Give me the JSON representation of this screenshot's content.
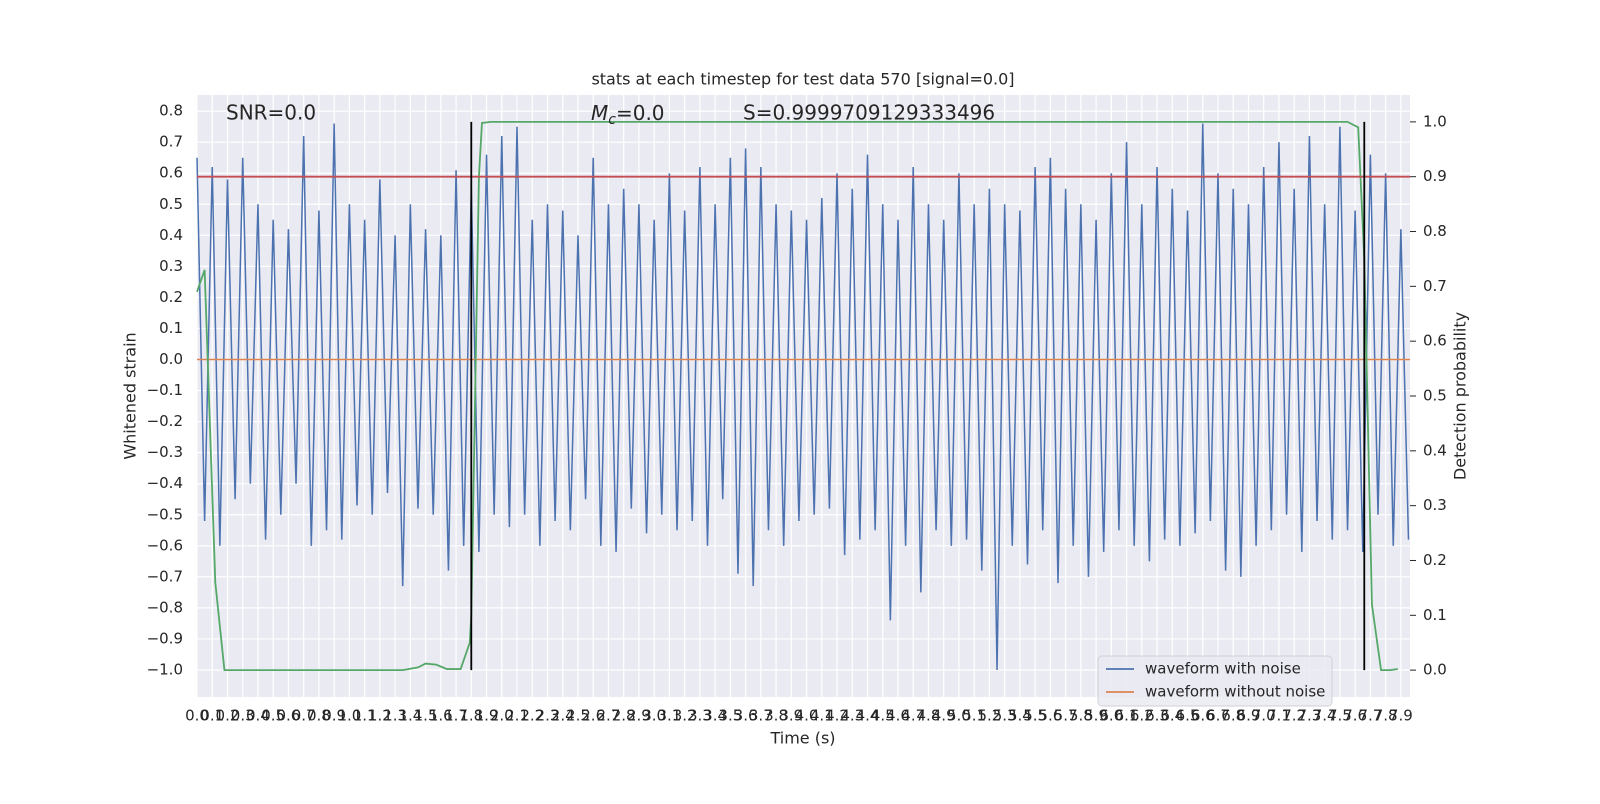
{
  "chart_data": {
    "type": "line",
    "title": "stats at each timestep for test data 570 [signal=0.0]",
    "xlabel": "Time (s)",
    "ylabel": "Whitened strain",
    "y2label": "Detection probability",
    "annotations": {
      "snr": "SNR=0.0",
      "mc": {
        "symbol": "M",
        "subscript": "c",
        "text": "=0.0"
      },
      "score": "S=0.9999709129333496"
    },
    "xlim": [
      0,
      7.96
    ],
    "ylim": [
      -1.087,
      0.852
    ],
    "y2lim": [
      -0.049,
      1.049
    ],
    "grid": true,
    "legend": "lower right",
    "xticks": [
      {
        "value": 0,
        "label": "0.0"
      },
      0.1,
      0.2,
      0.3,
      0.4,
      0.5,
      0.6,
      0.7,
      0.8,
      0.9,
      {
        "value": 1,
        "label": "1.0"
      },
      1.1,
      1.2,
      1.3,
      1.4,
      1.5,
      1.6,
      1.7,
      1.8,
      1.9,
      {
        "value": 2,
        "label": "2.0"
      },
      2.1,
      2.2,
      2.3,
      2.4,
      2.5,
      2.6,
      2.7,
      2.8,
      2.9,
      {
        "value": 3,
        "label": "3.0"
      },
      3.1,
      3.2,
      3.3,
      3.4,
      3.5,
      3.6,
      3.7,
      3.8,
      3.9,
      {
        "value": 4,
        "label": "4.0"
      },
      4.1,
      4.2,
      4.3,
      4.4,
      4.5,
      4.6,
      4.7,
      4.8,
      4.9,
      {
        "value": 5,
        "label": "5.0"
      },
      5.1,
      5.2,
      5.3,
      5.4,
      5.5,
      5.6,
      5.7,
      5.8,
      5.9,
      {
        "value": 6,
        "label": "6.0"
      },
      6.1,
      6.2,
      6.3,
      6.4,
      6.5,
      6.6,
      6.7,
      6.8,
      6.9,
      {
        "value": 7,
        "label": "7.0"
      },
      7.1,
      7.2,
      7.3,
      7.4,
      7.5,
      7.6,
      7.7,
      7.8,
      7.9
    ],
    "yticks": [
      {
        "value": -1,
        "label": "−1.0"
      },
      {
        "value": -0.9,
        "label": "−0.9"
      },
      {
        "value": -0.8,
        "label": "−0.8"
      },
      {
        "value": -0.7,
        "label": "−0.7"
      },
      {
        "value": -0.6,
        "label": "−0.6"
      },
      {
        "value": -0.5,
        "label": "−0.5"
      },
      {
        "value": -0.4,
        "label": "−0.4"
      },
      {
        "value": -0.3,
        "label": "−0.3"
      },
      {
        "value": -0.2,
        "label": "−0.2"
      },
      {
        "value": -0.1,
        "label": "−0.1"
      },
      {
        "value": 0,
        "label": "0.0"
      },
      0.1,
      0.2,
      0.3,
      0.4,
      0.5,
      0.6,
      0.7,
      0.8
    ],
    "y2ticks": [
      {
        "value": 0,
        "label": "0.0"
      },
      0.1,
      0.2,
      0.3,
      0.4,
      0.5,
      0.6,
      0.7,
      0.8,
      0.9,
      {
        "value": 1,
        "label": "1.0"
      }
    ],
    "series": [
      {
        "name": "waveform with noise",
        "color": "#4c72b0",
        "x": [
          0,
          0.05,
          0.1,
          0.15,
          0.2,
          0.25,
          0.3,
          0.35,
          0.4,
          0.45,
          0.5,
          0.55,
          0.6,
          0.65,
          0.7,
          0.75,
          0.8,
          0.85,
          0.9,
          0.95,
          1,
          1.05,
          1.1,
          1.15,
          1.2,
          1.25,
          1.3,
          1.35,
          1.4,
          1.45,
          1.5,
          1.55,
          1.6,
          1.65,
          1.7,
          1.75,
          1.8,
          1.85,
          1.9,
          1.95,
          2,
          2.05,
          2.1,
          2.15,
          2.2,
          2.25,
          2.3,
          2.35,
          2.4,
          2.45,
          2.5,
          2.55,
          2.6,
          2.65,
          2.7,
          2.75,
          2.8,
          2.85,
          2.9,
          2.95,
          3,
          3.05,
          3.1,
          3.15,
          3.2,
          3.25,
          3.3,
          3.35,
          3.4,
          3.45,
          3.5,
          3.55,
          3.6,
          3.65,
          3.7,
          3.75,
          3.8,
          3.85,
          3.9,
          3.95,
          4,
          4.05,
          4.1,
          4.15,
          4.2,
          4.25,
          4.3,
          4.35,
          4.4,
          4.45,
          4.5,
          4.55,
          4.6,
          4.65,
          4.7,
          4.75,
          4.8,
          4.85,
          4.9,
          4.95,
          5,
          5.05,
          5.1,
          5.15,
          5.2,
          5.25,
          5.3,
          5.35,
          5.4,
          5.45,
          5.5,
          5.55,
          5.6,
          5.65,
          5.7,
          5.75,
          5.8,
          5.85,
          5.9,
          5.95,
          6,
          6.05,
          6.1,
          6.15,
          6.2,
          6.25,
          6.3,
          6.35,
          6.4,
          6.45,
          6.5,
          6.55,
          6.6,
          6.65,
          6.7,
          6.75,
          6.8,
          6.85,
          6.9,
          6.95,
          7,
          7.05,
          7.1,
          7.15,
          7.2,
          7.25,
          7.3,
          7.35,
          7.4,
          7.45,
          7.5,
          7.55,
          7.6,
          7.65,
          7.7,
          7.75,
          7.8,
          7.85,
          7.9,
          7.95
        ],
        "values": [
          0.65,
          -0.52,
          0.62,
          -0.6,
          0.58,
          -0.45,
          0.65,
          -0.4,
          0.5,
          -0.58,
          0.45,
          -0.5,
          0.42,
          -0.4,
          0.72,
          -0.6,
          0.48,
          -0.55,
          0.76,
          -0.58,
          0.5,
          -0.47,
          0.45,
          -0.5,
          0.58,
          -0.43,
          0.4,
          -0.73,
          0.5,
          -0.48,
          0.42,
          -0.5,
          0.4,
          -0.68,
          0.61,
          -0.6,
          0.55,
          -0.62,
          0.66,
          -0.5,
          0.72,
          -0.54,
          0.75,
          -0.5,
          0.45,
          -0.6,
          0.5,
          -0.52,
          0.48,
          -0.55,
          0.4,
          -0.45,
          0.65,
          -0.6,
          0.5,
          -0.62,
          0.55,
          -0.48,
          0.5,
          -0.56,
          0.45,
          -0.5,
          0.6,
          -0.55,
          0.48,
          -0.52,
          0.62,
          -0.6,
          0.5,
          -0.45,
          0.65,
          -0.69,
          0.68,
          -0.73,
          0.62,
          -0.55,
          0.5,
          -0.6,
          0.48,
          -0.52,
          0.45,
          -0.5,
          0.52,
          -0.48,
          0.6,
          -0.63,
          0.55,
          -0.58,
          0.66,
          -0.55,
          0.5,
          -0.84,
          0.45,
          -0.6,
          0.62,
          -0.75,
          0.5,
          -0.55,
          0.45,
          -0.6,
          0.6,
          -0.58,
          0.5,
          -0.68,
          0.55,
          -1.0,
          0.5,
          -0.6,
          0.48,
          -0.66,
          0.62,
          -0.55,
          0.65,
          -0.72,
          0.55,
          -0.6,
          0.5,
          -0.7,
          0.45,
          -0.62,
          0.6,
          -0.55,
          0.7,
          -0.6,
          0.5,
          -0.65,
          0.62,
          -0.58,
          0.55,
          -0.6,
          0.48,
          -0.56,
          0.76,
          -0.52,
          0.6,
          -0.68,
          0.55,
          -0.7,
          0.5,
          -0.6,
          0.62,
          -0.55,
          0.7,
          -0.5,
          0.55,
          -0.62,
          0.72,
          -0.52,
          0.5,
          -0.58,
          0.75,
          -0.55,
          0.48,
          -0.62,
          0.66,
          -0.5,
          0.6,
          -0.6,
          0.42,
          -0.58
        ]
      },
      {
        "name": "waveform without noise",
        "color": "#dd8452",
        "x": [
          0,
          7.96
        ],
        "values": [
          0,
          0
        ]
      }
    ],
    "lines": [
      {
        "axis": "y2",
        "color": "#55a868",
        "x": [
          0,
          0.05,
          0.12,
          0.18,
          1.35,
          1.45,
          1.5,
          1.57,
          1.64,
          1.73,
          1.79,
          1.8,
          1.85,
          1.87,
          1.93,
          7.55,
          7.62,
          7.66,
          7.71,
          7.77,
          7.83,
          7.88
        ],
        "values": [
          0.69,
          0.73,
          0.16,
          0,
          0,
          0.005,
          0.012,
          0.01,
          0.002,
          0.002,
          0.05,
          0.1,
          0.9,
          0.998,
          1,
          1,
          0.99,
          0.75,
          0.12,
          0,
          0,
          0.002
        ]
      }
    ],
    "hlines": [
      {
        "axis": "y2",
        "y": 0.9,
        "color": "#c44e52"
      }
    ],
    "vlines": [
      {
        "axis": "y2",
        "x": 1.8,
        "ymin": 0,
        "ymax": 1,
        "color": "#000000"
      },
      {
        "axis": "y2",
        "x": 7.66,
        "ymin": 0,
        "ymax": 1,
        "color": "#000000"
      }
    ]
  }
}
